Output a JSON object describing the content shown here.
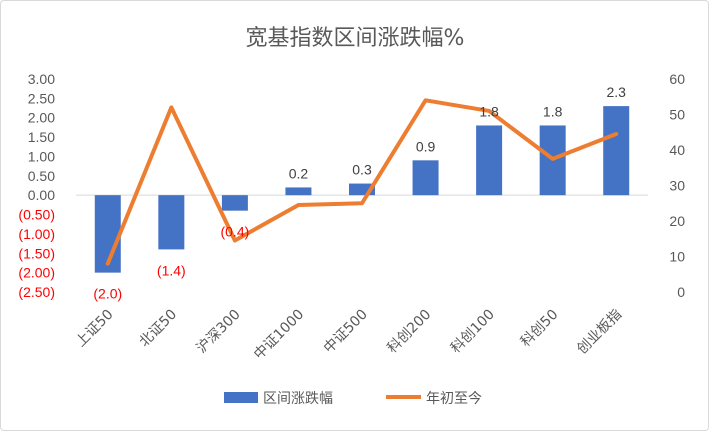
{
  "chart_data": {
    "type": "bar",
    "title": "宽基指数区间涨跌幅%",
    "categories": [
      "上证50",
      "北证50",
      "沪深300",
      "中证1000",
      "中证500",
      "科创200",
      "科创100",
      "科创50",
      "创业板指"
    ],
    "series": [
      {
        "name": "区间涨跌幅",
        "type": "bar",
        "axis": "left",
        "color": "#4472C4",
        "values": [
          -2.0,
          -1.4,
          -0.4,
          0.2,
          0.3,
          0.9,
          1.8,
          1.8,
          2.3
        ],
        "data_labels": [
          "(2.0)",
          "(1.4)",
          "(0.4)",
          "0.2",
          "0.3",
          "0.9",
          "1.8",
          "1.8",
          "2.3"
        ]
      },
      {
        "name": "年初至今",
        "type": "line",
        "axis": "right",
        "color": "#ED7D31",
        "values": [
          8,
          52,
          14.5,
          24.5,
          25,
          54,
          51,
          37.5,
          44.5
        ]
      }
    ],
    "y_left": {
      "ylim": [
        -2.5,
        3.0
      ],
      "ticks": [
        3.0,
        2.5,
        2.0,
        1.5,
        1.0,
        0.5,
        0.0,
        -0.5,
        -1.0,
        -1.5,
        -2.0,
        -2.5
      ],
      "tick_labels": [
        "3.00",
        "2.50",
        "2.00",
        "1.50",
        "1.00",
        "0.50",
        "0.00",
        "(0.50)",
        "(1.00)",
        "(1.50)",
        "(2.00)",
        "(2.50)"
      ],
      "negative_color": "#FF0000",
      "positive_color": "#595959"
    },
    "y_right": {
      "ylim": [
        0,
        60
      ],
      "ticks": [
        60,
        50,
        40,
        30,
        20,
        10,
        0
      ],
      "tick_labels": [
        "60",
        "50",
        "40",
        "30",
        "20",
        "10",
        "0"
      ]
    },
    "grid": false,
    "legend": {
      "position": "bottom",
      "items": [
        "区间涨跌幅",
        "年初至今"
      ]
    }
  }
}
